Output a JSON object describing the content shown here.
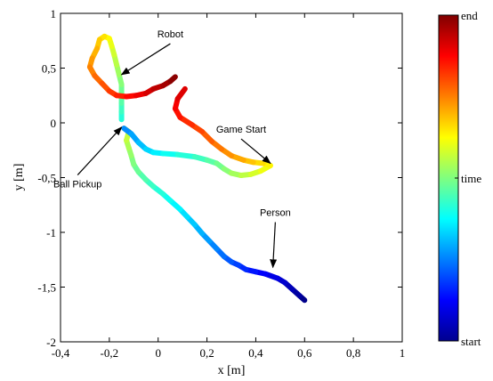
{
  "chart_data": {
    "type": "line",
    "xlabel": "x [m]",
    "ylabel": "y [m]",
    "xlim": [
      -0.4,
      1
    ],
    "ylim": [
      -2,
      1
    ],
    "x_ticks": [
      -0.4,
      -0.2,
      0,
      0.2,
      0.4,
      0.6,
      0.8,
      1
    ],
    "x_tick_labels": [
      "-0,4",
      "-0,2",
      "0",
      "0,2",
      "0,4",
      "0,6",
      "0,8",
      "1"
    ],
    "y_ticks": [
      1,
      0.5,
      0,
      -0.5,
      -1,
      -1.5,
      -2
    ],
    "y_tick_labels": [
      "1",
      "0,5",
      "0",
      "-0,5",
      "-1",
      "-1,5",
      "-2"
    ],
    "grid": false,
    "colormap": "jet",
    "colorbar": {
      "labels": [
        {
          "text": "end",
          "at": 1.0
        },
        {
          "text": "time",
          "at": 0.5
        },
        {
          "text": "start",
          "at": 0.0
        }
      ]
    },
    "series": [
      {
        "name": "Person",
        "time_range": [
          0.0,
          0.6
        ],
        "points": [
          [
            0.6,
            -1.62
          ],
          [
            0.58,
            -1.58
          ],
          [
            0.55,
            -1.52
          ],
          [
            0.52,
            -1.46
          ],
          [
            0.49,
            -1.42
          ],
          [
            0.44,
            -1.38
          ],
          [
            0.4,
            -1.36
          ],
          [
            0.36,
            -1.34
          ],
          [
            0.33,
            -1.3
          ],
          [
            0.3,
            -1.27
          ],
          [
            0.27,
            -1.22
          ],
          [
            0.24,
            -1.15
          ],
          [
            0.21,
            -1.08
          ],
          [
            0.18,
            -1.01
          ],
          [
            0.15,
            -0.93
          ],
          [
            0.12,
            -0.86
          ],
          [
            0.09,
            -0.79
          ],
          [
            0.05,
            -0.71
          ],
          [
            0.02,
            -0.65
          ],
          [
            -0.02,
            -0.58
          ],
          [
            -0.05,
            -0.52
          ],
          [
            -0.08,
            -0.45
          ],
          [
            -0.1,
            -0.38
          ],
          [
            -0.11,
            -0.3
          ],
          [
            -0.12,
            -0.23
          ],
          [
            -0.13,
            -0.16
          ],
          [
            -0.12,
            -0.08
          ],
          [
            -0.14,
            -0.05
          ]
        ]
      },
      {
        "name": "Robot",
        "time_range": [
          0.4,
          1.0
        ],
        "points": [
          [
            -0.15,
            0.03
          ],
          [
            -0.15,
            0.1
          ],
          [
            -0.15,
            0.18
          ],
          [
            -0.15,
            0.26
          ],
          [
            -0.15,
            0.35
          ],
          [
            -0.16,
            0.44
          ],
          [
            -0.17,
            0.53
          ],
          [
            -0.18,
            0.62
          ],
          [
            -0.19,
            0.7
          ],
          [
            -0.2,
            0.77
          ],
          [
            -0.22,
            0.79
          ],
          [
            -0.24,
            0.76
          ],
          [
            -0.25,
            0.68
          ],
          [
            -0.27,
            0.59
          ],
          [
            -0.28,
            0.51
          ],
          [
            -0.26,
            0.43
          ],
          [
            -0.23,
            0.36
          ],
          [
            -0.2,
            0.29
          ],
          [
            -0.17,
            0.25
          ],
          [
            -0.13,
            0.24
          ],
          [
            -0.09,
            0.25
          ],
          [
            -0.05,
            0.27
          ],
          [
            -0.02,
            0.31
          ],
          [
            0.02,
            0.34
          ],
          [
            0.05,
            0.38
          ],
          [
            0.07,
            0.42
          ]
        ]
      },
      {
        "name": "Game Start",
        "time_range": [
          0.25,
          0.92
        ],
        "points": [
          [
            -0.14,
            -0.05
          ],
          [
            -0.11,
            -0.1
          ],
          [
            -0.08,
            -0.18
          ],
          [
            -0.05,
            -0.24
          ],
          [
            -0.02,
            -0.27
          ],
          [
            0.02,
            -0.28
          ],
          [
            0.08,
            -0.29
          ],
          [
            0.15,
            -0.31
          ],
          [
            0.2,
            -0.34
          ],
          [
            0.24,
            -0.37
          ],
          [
            0.27,
            -0.42
          ],
          [
            0.3,
            -0.46
          ],
          [
            0.34,
            -0.48
          ],
          [
            0.38,
            -0.47
          ],
          [
            0.42,
            -0.44
          ],
          [
            0.46,
            -0.39
          ],
          [
            0.43,
            -0.37
          ],
          [
            0.39,
            -0.36
          ],
          [
            0.35,
            -0.34
          ],
          [
            0.3,
            -0.3
          ],
          [
            0.26,
            -0.24
          ],
          [
            0.22,
            -0.17
          ],
          [
            0.18,
            -0.08
          ],
          [
            0.14,
            -0.02
          ],
          [
            0.09,
            0.05
          ],
          [
            0.07,
            0.13
          ],
          [
            0.08,
            0.22
          ],
          [
            0.11,
            0.31
          ]
        ]
      }
    ],
    "annotations": [
      {
        "text": "Robot",
        "x": 0.05,
        "y": 0.78,
        "arrow_to": [
          -0.15,
          0.44
        ]
      },
      {
        "text": "Game Start",
        "x": 0.34,
        "y": -0.09,
        "arrow_to": [
          0.46,
          -0.37
        ]
      },
      {
        "text": "Ball Pickup",
        "x": -0.33,
        "y": -0.59,
        "arrow_to": [
          -0.15,
          -0.04
        ]
      },
      {
        "text": "Person",
        "x": 0.48,
        "y": -0.85,
        "arrow_to": [
          0.47,
          -1.32
        ]
      }
    ]
  }
}
